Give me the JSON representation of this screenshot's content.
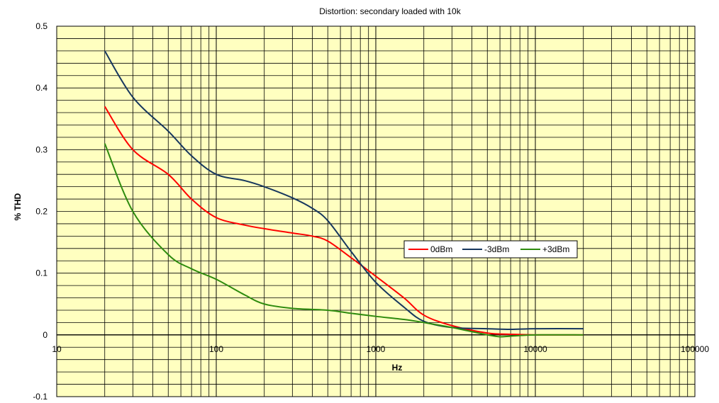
{
  "chart_data": {
    "type": "line",
    "title": "Distortion: secondary loaded with 10k",
    "xlabel": "Hz",
    "ylabel": "% THD",
    "x_scale": "log",
    "xlim": [
      10,
      100000
    ],
    "ylim": [
      -0.1,
      0.5
    ],
    "x_ticks": [
      10,
      100,
      1000,
      10000,
      100000
    ],
    "x_tick_labels": [
      "10",
      "100",
      "1000",
      "10000",
      "100000"
    ],
    "y_ticks": [
      -0.1,
      0,
      0.1,
      0.2,
      0.3,
      0.4,
      0.5
    ],
    "y_tick_labels": [
      "-0.1",
      "0",
      "0.1",
      "0.2",
      "0.3",
      "0.4",
      "0.5"
    ],
    "y_minor_step": 0.02,
    "grid": true,
    "plot_background": "#ffffc0",
    "legend_position": "center-right",
    "series": [
      {
        "name": "0dBm",
        "color": "#ff0000",
        "points": [
          [
            20,
            0.37
          ],
          [
            30,
            0.3
          ],
          [
            50,
            0.26
          ],
          [
            70,
            0.22
          ],
          [
            100,
            0.19
          ],
          [
            150,
            0.178
          ],
          [
            200,
            0.172
          ],
          [
            300,
            0.165
          ],
          [
            400,
            0.16
          ],
          [
            500,
            0.152
          ],
          [
            700,
            0.125
          ],
          [
            1000,
            0.095
          ],
          [
            1500,
            0.06
          ],
          [
            2000,
            0.032
          ],
          [
            3000,
            0.015
          ],
          [
            5000,
            0.003
          ],
          [
            7000,
            0.001
          ],
          [
            10000,
            0.0
          ],
          [
            20000,
            0.0
          ]
        ]
      },
      {
        "name": "-3dBm",
        "color": "#17375e",
        "points": [
          [
            20,
            0.46
          ],
          [
            30,
            0.385
          ],
          [
            50,
            0.33
          ],
          [
            70,
            0.29
          ],
          [
            100,
            0.26
          ],
          [
            150,
            0.25
          ],
          [
            200,
            0.24
          ],
          [
            300,
            0.222
          ],
          [
            400,
            0.205
          ],
          [
            500,
            0.185
          ],
          [
            700,
            0.135
          ],
          [
            1000,
            0.085
          ],
          [
            1500,
            0.045
          ],
          [
            2000,
            0.022
          ],
          [
            3000,
            0.012
          ],
          [
            5000,
            0.01
          ],
          [
            7000,
            0.009
          ],
          [
            10000,
            0.01
          ],
          [
            20000,
            0.01
          ]
        ]
      },
      {
        "name": "+3dBm",
        "color": "#2e8b0e",
        "points": [
          [
            20,
            0.31
          ],
          [
            30,
            0.2
          ],
          [
            50,
            0.13
          ],
          [
            70,
            0.107
          ],
          [
            100,
            0.09
          ],
          [
            150,
            0.065
          ],
          [
            200,
            0.05
          ],
          [
            300,
            0.043
          ],
          [
            500,
            0.04
          ],
          [
            700,
            0.035
          ],
          [
            1000,
            0.03
          ],
          [
            1500,
            0.025
          ],
          [
            2000,
            0.02
          ],
          [
            3000,
            0.012
          ],
          [
            5000,
            0.0
          ],
          [
            6000,
            -0.003
          ],
          [
            7000,
            -0.002
          ],
          [
            10000,
            0.0
          ],
          [
            20000,
            0.0
          ]
        ]
      }
    ]
  }
}
